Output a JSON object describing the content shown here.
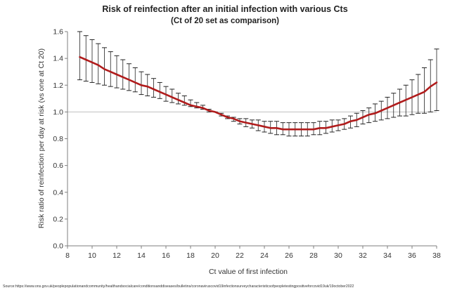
{
  "chart_data": {
    "type": "line",
    "title": "Risk of reinfection after an initial infection with various Cts",
    "subtitle": "(Ct of 20 set as comparison)",
    "xlabel": "Ct value of first infection",
    "ylabel": "Risk ratio of reinfection per day at risk (vs one at Ct 20)",
    "xlim": [
      8,
      38
    ],
    "ylim": [
      0,
      1.6
    ],
    "xticks": [
      8,
      10,
      12,
      14,
      16,
      18,
      20,
      22,
      24,
      26,
      28,
      30,
      32,
      34,
      36,
      38
    ],
    "yticks": [
      "0.0",
      "0.2",
      "0.4",
      "0.6",
      "0.8",
      "1.0",
      "1.2",
      "1.4",
      "1.6"
    ],
    "reference_line": 1.0,
    "series": [
      {
        "name": "Risk ratio",
        "color": "#b01c1c",
        "x": [
          9,
          9.5,
          10,
          10.5,
          11,
          11.5,
          12,
          12.5,
          13,
          13.5,
          14,
          14.5,
          15,
          15.5,
          16,
          16.5,
          17,
          17.5,
          18,
          18.5,
          19,
          19.5,
          20,
          20.5,
          21,
          21.5,
          22,
          22.5,
          23,
          23.5,
          24,
          24.5,
          25,
          25.5,
          26,
          26.5,
          27,
          27.5,
          28,
          28.5,
          29,
          29.5,
          30,
          30.5,
          31,
          31.5,
          32,
          32.5,
          33,
          33.5,
          34,
          34.5,
          35,
          35.5,
          36,
          36.5,
          37,
          37.5,
          38
        ],
        "values": [
          1.41,
          1.39,
          1.37,
          1.35,
          1.32,
          1.3,
          1.28,
          1.26,
          1.24,
          1.22,
          1.2,
          1.19,
          1.17,
          1.15,
          1.13,
          1.11,
          1.09,
          1.07,
          1.05,
          1.04,
          1.03,
          1.01,
          1.0,
          0.98,
          0.96,
          0.95,
          0.93,
          0.92,
          0.91,
          0.9,
          0.89,
          0.88,
          0.88,
          0.87,
          0.87,
          0.87,
          0.87,
          0.87,
          0.87,
          0.88,
          0.88,
          0.89,
          0.9,
          0.91,
          0.93,
          0.94,
          0.96,
          0.98,
          0.99,
          1.01,
          1.03,
          1.05,
          1.07,
          1.09,
          1.11,
          1.13,
          1.15,
          1.19,
          1.22
        ],
        "lower": [
          1.24,
          1.23,
          1.22,
          1.21,
          1.2,
          1.19,
          1.18,
          1.17,
          1.16,
          1.15,
          1.13,
          1.12,
          1.11,
          1.1,
          1.08,
          1.07,
          1.06,
          1.05,
          1.04,
          1.03,
          1.02,
          1.0,
          1.0,
          0.97,
          0.95,
          0.93,
          0.91,
          0.89,
          0.88,
          0.86,
          0.85,
          0.84,
          0.83,
          0.83,
          0.82,
          0.82,
          0.82,
          0.82,
          0.83,
          0.83,
          0.84,
          0.85,
          0.86,
          0.87,
          0.88,
          0.89,
          0.91,
          0.92,
          0.93,
          0.94,
          0.95,
          0.96,
          0.97,
          0.97,
          0.98,
          0.99,
          0.99,
          1.0,
          1.01
        ],
        "upper": [
          1.6,
          1.57,
          1.54,
          1.51,
          1.48,
          1.45,
          1.42,
          1.39,
          1.36,
          1.33,
          1.3,
          1.28,
          1.25,
          1.22,
          1.19,
          1.17,
          1.14,
          1.12,
          1.09,
          1.07,
          1.05,
          1.02,
          1.0,
          0.99,
          0.97,
          0.96,
          0.95,
          0.95,
          0.94,
          0.94,
          0.93,
          0.93,
          0.93,
          0.92,
          0.92,
          0.92,
          0.92,
          0.92,
          0.92,
          0.93,
          0.93,
          0.94,
          0.94,
          0.95,
          0.97,
          0.99,
          1.01,
          1.03,
          1.06,
          1.08,
          1.11,
          1.14,
          1.17,
          1.2,
          1.24,
          1.28,
          1.33,
          1.39,
          1.47
        ]
      }
    ],
    "source": "Source:https://www.ons.gov.uk/peoplepopulationandcommunity/healthandsocialcare/conditionsanddiseases/bulletins/coronaviruscovid19infectionsurveycharacteristicsofpeopletestingpositiveforcovid19uk/19october2022"
  }
}
